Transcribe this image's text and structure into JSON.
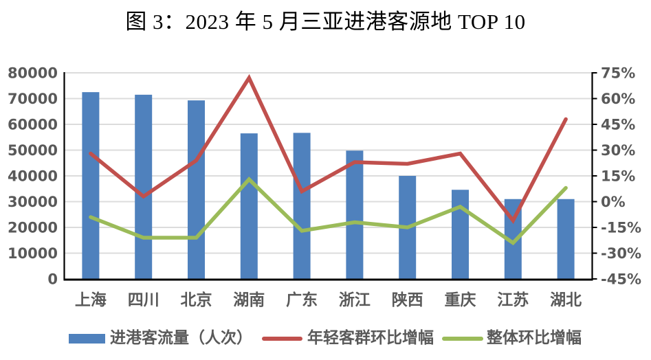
{
  "title": "图 3：2023 年 5 月三亚进港客源地 TOP 10",
  "colors": {
    "bar": "#4F81BD",
    "young_line": "#C0504D",
    "overall_line": "#9BBB59",
    "gridline": "#DCDCDC",
    "axis": "#000000",
    "tick_label": "#595959"
  },
  "legend": {
    "items": [
      {
        "label": "进港客流量（人次）",
        "marker": "bar-swatch"
      },
      {
        "label": "年轻客群环比增幅",
        "marker": "red-line-swatch"
      },
      {
        "label": "整体环比增幅",
        "marker": "green-line-swatch"
      }
    ]
  },
  "chart_data": {
    "type": "bar",
    "subtype": "combo bar + two lines, dual axis",
    "title": "图 3：2023 年 5 月三亚进港客源地 TOP 10",
    "categories": [
      "上海",
      "四川",
      "北京",
      "湖南",
      "广东",
      "浙江",
      "陕西",
      "重庆",
      "江苏",
      "湖北"
    ],
    "series": [
      {
        "name": "进港客流量（人次）",
        "type": "bar",
        "axis": "left",
        "values": [
          72500,
          71500,
          69300,
          56500,
          56700,
          49800,
          40000,
          34600,
          31000,
          31000
        ]
      },
      {
        "name": "年轻客群环比增幅",
        "type": "line",
        "axis": "right",
        "values_pct": [
          28,
          3,
          24,
          72,
          6,
          23,
          22,
          28,
          -11,
          48
        ]
      },
      {
        "name": "整体环比增幅",
        "type": "line",
        "axis": "right",
        "values_pct": [
          -9,
          -21,
          -21,
          13,
          -17,
          -12,
          -15,
          -3,
          -24,
          8
        ]
      }
    ],
    "left_axis": {
      "min": 0,
      "max": 80000,
      "step": 10000,
      "ticks": [
        "80000",
        "70000",
        "60000",
        "50000",
        "40000",
        "30000",
        "20000",
        "10000",
        "0"
      ]
    },
    "right_axis": {
      "min": -45,
      "max": 75,
      "step": 15,
      "ticks": [
        "75%",
        "60%",
        "45%",
        "30%",
        "15%",
        "0%",
        "-15%",
        "-30%",
        "-45%"
      ]
    },
    "grid": "horizontal gridlines on",
    "legend_position": "bottom"
  }
}
